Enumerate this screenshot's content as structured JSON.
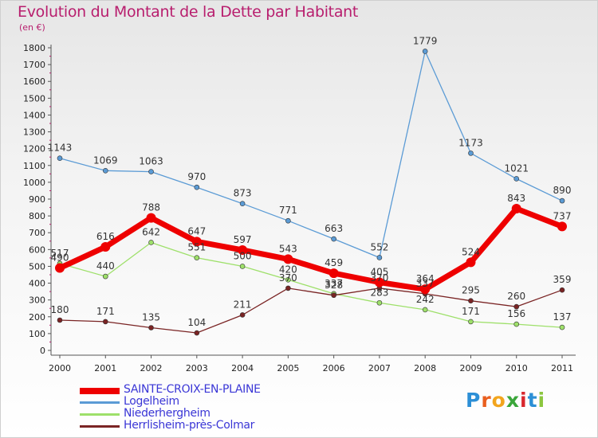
{
  "header": {
    "title": "Evolution du Montant de la Dette par Habitant",
    "unit": "(en €)"
  },
  "logo": {
    "letters": [
      "P",
      "r",
      "o",
      "x",
      "i",
      "t",
      "i"
    ],
    "colors": [
      "#2c8fd6",
      "#e95f1f",
      "#f2a51e",
      "#3aa63a",
      "#d9272e",
      "#2c8fd6",
      "#8cc63f"
    ]
  },
  "chart_data": {
    "type": "line",
    "title": "Evolution du Montant de la Dette par Habitant",
    "ylabel": "(en €)",
    "xlabel": "",
    "x": [
      "2000",
      "2001",
      "2002",
      "2003",
      "2004",
      "2005",
      "2006",
      "2007",
      "2008",
      "2009",
      "2010",
      "2011"
    ],
    "ylim": [
      0,
      1800
    ],
    "yticks": [
      0,
      100,
      200,
      300,
      400,
      500,
      600,
      700,
      800,
      900,
      1000,
      1100,
      1200,
      1300,
      1400,
      1500,
      1600,
      1700,
      1800
    ],
    "grid": false,
    "legend_position": "bottom-left",
    "series": [
      {
        "name": "SAINTE-CROIX-EN-PLAINE",
        "color": "#ee0000",
        "emphasis": true,
        "values": [
          490,
          616,
          788,
          647,
          597,
          543,
          459,
          405,
          364,
          524,
          843,
          737
        ],
        "labels": [
          "490",
          "616",
          "788",
          "647",
          "597",
          "543",
          "459",
          "405",
          "364",
          "524",
          "843",
          "737"
        ]
      },
      {
        "name": "Logelheim",
        "color": "#5b9bd5",
        "emphasis": false,
        "values": [
          1143,
          1069,
          1063,
          970,
          873,
          771,
          663,
          552,
          null,
          1173,
          1021,
          890
        ],
        "labels": [
          "1143",
          "1069",
          "1063",
          "970",
          "873",
          "771",
          "663",
          "552",
          "1779",
          "1173",
          "1021",
          "890"
        ]
      },
      {
        "name": "Niederhergheim",
        "color": "#9ee06a",
        "emphasis": false,
        "values": [
          517,
          440,
          642,
          551,
          500,
          420,
          337,
          283,
          242,
          171,
          156,
          137
        ],
        "labels": [
          "517",
          "440",
          "642",
          "551",
          "500",
          "420",
          "337",
          "283",
          "242",
          "171",
          "156",
          "137"
        ]
      },
      {
        "name": "Herrlisheim-près-Colmar",
        "color": "#7a2424",
        "emphasis": false,
        "values": [
          180,
          171,
          135,
          104,
          211,
          370,
          328,
          370,
          337,
          295,
          260,
          359
        ],
        "labels": [
          "180",
          "171",
          "135",
          "104",
          "211",
          "370",
          "328",
          "370",
          "337",
          "295",
          "260",
          "359"
        ]
      }
    ],
    "logelheim_2008_value": 1779
  }
}
